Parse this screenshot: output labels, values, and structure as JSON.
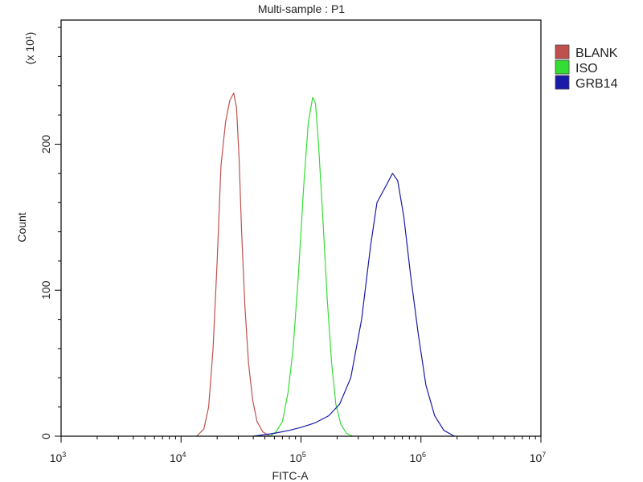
{
  "chart_data": {
    "type": "line",
    "title": "Multi-sample : P1",
    "xlabel": "FITC-A",
    "ylabel": "Count",
    "y_multiplier": "(x 10¹)",
    "x_scale": "log",
    "xlim": [
      1000,
      10000000
    ],
    "ylim": [
      0,
      285
    ],
    "x_ticks": [
      {
        "value": 1000,
        "base": "10",
        "exp": "3"
      },
      {
        "value": 10000,
        "base": "10",
        "exp": "4"
      },
      {
        "value": 100000,
        "base": "10",
        "exp": "5"
      },
      {
        "value": 1000000,
        "base": "10",
        "exp": "6"
      },
      {
        "value": 10000000,
        "base": "10",
        "exp": "7"
      }
    ],
    "y_ticks": [
      {
        "value": 0,
        "label": "0"
      },
      {
        "value": 100,
        "label": "100"
      },
      {
        "value": 200,
        "label": "200"
      }
    ],
    "legend_position": "top-right",
    "grid": false,
    "series": [
      {
        "name": "BLANK",
        "color": "#c0504d",
        "points": [
          [
            13500,
            0
          ],
          [
            15500,
            5
          ],
          [
            17000,
            20
          ],
          [
            18500,
            60
          ],
          [
            20000,
            120
          ],
          [
            21500,
            185
          ],
          [
            23500,
            215
          ],
          [
            25500,
            230
          ],
          [
            27500,
            235
          ],
          [
            29000,
            225
          ],
          [
            30500,
            190
          ],
          [
            32000,
            140
          ],
          [
            34000,
            90
          ],
          [
            36500,
            50
          ],
          [
            39500,
            25
          ],
          [
            43000,
            10
          ],
          [
            48000,
            3
          ],
          [
            55000,
            0
          ]
        ]
      },
      {
        "name": "ISO",
        "color": "#33dd33",
        "points": [
          [
            55000,
            0
          ],
          [
            62000,
            3
          ],
          [
            70000,
            10
          ],
          [
            78000,
            30
          ],
          [
            86000,
            60
          ],
          [
            95000,
            110
          ],
          [
            105000,
            170
          ],
          [
            115000,
            215
          ],
          [
            125000,
            232
          ],
          [
            132000,
            228
          ],
          [
            140000,
            200
          ],
          [
            152000,
            150
          ],
          [
            165000,
            95
          ],
          [
            180000,
            50
          ],
          [
            195000,
            22
          ],
          [
            215000,
            8
          ],
          [
            240000,
            2
          ],
          [
            270000,
            0
          ]
        ]
      },
      {
        "name": "GRB14",
        "color": "#1a1aa8",
        "points": [
          [
            40000,
            0
          ],
          [
            60000,
            2
          ],
          [
            80000,
            4
          ],
          [
            100000,
            6
          ],
          [
            130000,
            9
          ],
          [
            170000,
            14
          ],
          [
            210000,
            22
          ],
          [
            260000,
            40
          ],
          [
            320000,
            80
          ],
          [
            380000,
            130
          ],
          [
            430000,
            160
          ],
          [
            500000,
            170
          ],
          [
            580000,
            180
          ],
          [
            640000,
            175
          ],
          [
            720000,
            150
          ],
          [
            820000,
            110
          ],
          [
            950000,
            70
          ],
          [
            1100000,
            35
          ],
          [
            1300000,
            14
          ],
          [
            1550000,
            4
          ],
          [
            1900000,
            0
          ]
        ]
      }
    ]
  }
}
